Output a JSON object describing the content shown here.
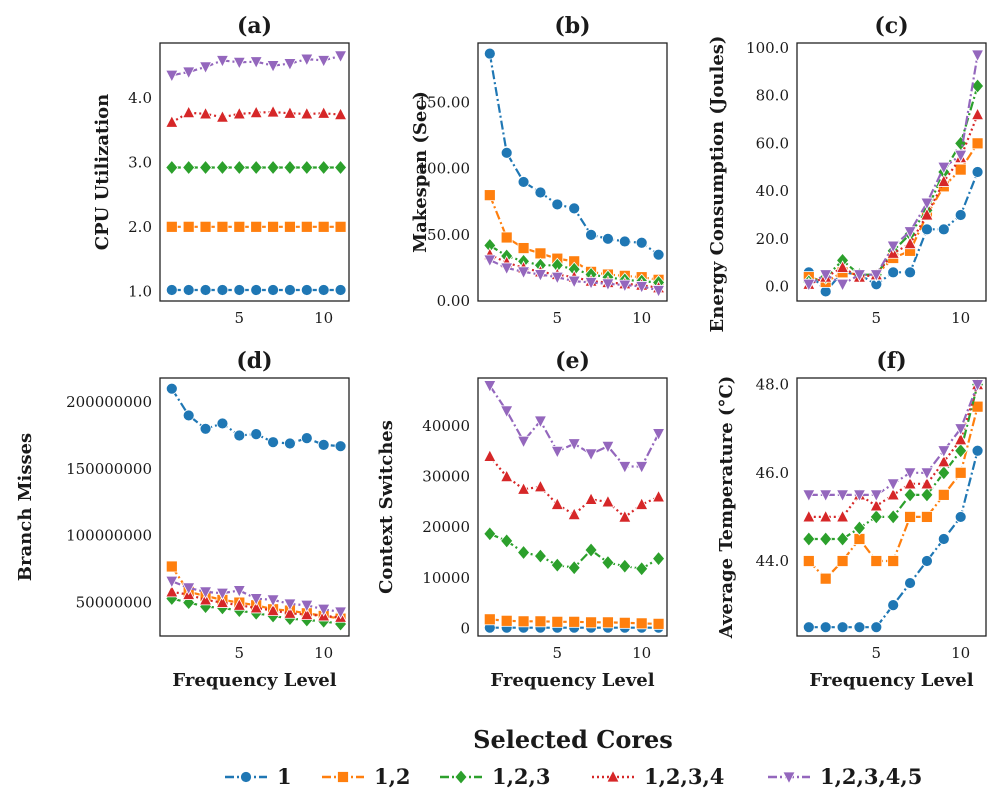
{
  "chart_data": [
    {
      "id": "a",
      "type": "line",
      "title": "(a)",
      "xlabel": "",
      "ylabel": "CPU Utilization",
      "xlim": [
        0.3,
        11.5
      ],
      "ylim": [
        0.85,
        4.85
      ],
      "xticks": [
        5,
        10
      ],
      "xticklabels": [
        "5",
        "10"
      ],
      "yticks": [
        1,
        2,
        3,
        4
      ],
      "yticklabels": [
        "1.0",
        "2.0",
        "3.0",
        "4.0"
      ],
      "x": [
        1,
        2,
        3,
        4,
        5,
        6,
        7,
        8,
        9,
        10,
        11
      ],
      "series": [
        {
          "name": "1",
          "values": [
            1.02,
            1.02,
            1.02,
            1.02,
            1.02,
            1.02,
            1.02,
            1.02,
            1.02,
            1.02,
            1.02
          ]
        },
        {
          "name": "1,2",
          "values": [
            2.0,
            2.0,
            2.0,
            2.0,
            2.0,
            2.0,
            2.0,
            2.0,
            2.0,
            2.0,
            2.0
          ]
        },
        {
          "name": "1,2,3",
          "values": [
            2.92,
            2.92,
            2.92,
            2.92,
            2.92,
            2.92,
            2.92,
            2.92,
            2.92,
            2.92,
            2.92
          ]
        },
        {
          "name": "1,2,3,4",
          "values": [
            3.62,
            3.77,
            3.75,
            3.7,
            3.75,
            3.77,
            3.78,
            3.76,
            3.75,
            3.76,
            3.74
          ]
        },
        {
          "name": "1,2,3,4,5",
          "values": [
            4.35,
            4.4,
            4.48,
            4.58,
            4.55,
            4.56,
            4.5,
            4.53,
            4.6,
            4.58,
            4.65
          ]
        }
      ]
    },
    {
      "id": "b",
      "type": "line",
      "title": "(b)",
      "xlabel": "",
      "ylabel": "Makespan (Sec)",
      "xlim": [
        0.3,
        11.5
      ],
      "ylim": [
        0,
        195
      ],
      "xticks": [
        5,
        10
      ],
      "xticklabels": [
        "5",
        "10"
      ],
      "yticks": [
        0,
        50,
        100,
        150
      ],
      "yticklabels": [
        "0.00",
        "50.00",
        "100.00",
        "150.00"
      ],
      "x": [
        1,
        2,
        3,
        4,
        5,
        6,
        7,
        8,
        9,
        10,
        11
      ],
      "series": [
        {
          "name": "1",
          "values": [
            187,
            112,
            90,
            82,
            73,
            70,
            50,
            47,
            45,
            44,
            35
          ]
        },
        {
          "name": "1,2",
          "values": [
            80,
            48,
            40,
            36,
            32,
            30,
            22,
            20,
            19,
            18,
            16
          ]
        },
        {
          "name": "1,2,3",
          "values": [
            42,
            34,
            30,
            27,
            27,
            24,
            20,
            18,
            16,
            15,
            14
          ]
        },
        {
          "name": "1,2,3,4",
          "values": [
            35,
            29,
            25,
            22,
            20,
            18,
            15,
            14,
            13,
            12,
            10
          ]
        },
        {
          "name": "1,2,3,4,5",
          "values": [
            31,
            25,
            22,
            20,
            18,
            15,
            14,
            13,
            12,
            11,
            8
          ]
        }
      ]
    },
    {
      "id": "c",
      "type": "line",
      "title": "(c)",
      "xlabel": "",
      "ylabel": "Energy Consumption (Joules)",
      "xlim": [
        0.3,
        11.5
      ],
      "ylim": [
        -6,
        102
      ],
      "xticks": [
        5,
        10
      ],
      "xticklabels": [
        "5",
        "10"
      ],
      "yticks": [
        0,
        20,
        40,
        60,
        80,
        100
      ],
      "yticklabels": [
        "0.0",
        "20.0",
        "40.0",
        "60.0",
        "80.0",
        "100.0"
      ],
      "x": [
        1,
        2,
        3,
        4,
        5,
        6,
        7,
        8,
        9,
        10,
        11
      ],
      "series": [
        {
          "name": "1",
          "values": [
            6,
            -2,
            6,
            5,
            1,
            6,
            6,
            24,
            24,
            30,
            48
          ]
        },
        {
          "name": "1,2",
          "values": [
            4,
            2,
            6,
            5,
            5,
            12,
            15,
            30,
            42,
            49,
            60
          ]
        },
        {
          "name": "1,2,3",
          "values": [
            2,
            4,
            11,
            5,
            5,
            15,
            22,
            32,
            48,
            60,
            84
          ]
        },
        {
          "name": "1,2,3,4",
          "values": [
            1,
            4,
            8,
            4,
            5,
            14,
            18,
            30,
            44,
            54,
            72
          ]
        },
        {
          "name": "1,2,3,4,5",
          "values": [
            1,
            5,
            1,
            5,
            5,
            17,
            23,
            35,
            50,
            55,
            97
          ]
        }
      ]
    },
    {
      "id": "d",
      "type": "line",
      "title": "(d)",
      "xlabel": "Frequency Level",
      "ylabel": "Branch Misses",
      "xlim": [
        0.3,
        11.5
      ],
      "ylim": [
        25000000,
        218000000
      ],
      "xticks": [
        5,
        10
      ],
      "xticklabels": [
        "5",
        "10"
      ],
      "yticks": [
        50000000,
        100000000,
        150000000,
        200000000
      ],
      "yticklabels": [
        "50000000",
        "100000000",
        "150000000",
        "200000000"
      ],
      "x": [
        1,
        2,
        3,
        4,
        5,
        6,
        7,
        8,
        9,
        10,
        11
      ],
      "series": [
        {
          "name": "1",
          "values": [
            210000000,
            190000000,
            180000000,
            184000000,
            175000000,
            176000000,
            170000000,
            169000000,
            173000000,
            168000000,
            167000000
          ]
        },
        {
          "name": "1,2",
          "values": [
            77000000,
            58000000,
            55000000,
            52000000,
            50000000,
            48000000,
            45000000,
            44000000,
            42000000,
            40000000,
            38000000
          ]
        },
        {
          "name": "1,2,3",
          "values": [
            53000000,
            50000000,
            47000000,
            46000000,
            44000000,
            42000000,
            40000000,
            38000000,
            37000000,
            36000000,
            34000000
          ]
        },
        {
          "name": "1,2,3,4",
          "values": [
            58000000,
            56000000,
            52000000,
            50000000,
            48000000,
            46000000,
            44000000,
            42000000,
            41000000,
            40000000,
            39000000
          ]
        },
        {
          "name": "1,2,3,4,5",
          "values": [
            66000000,
            61000000,
            58000000,
            57000000,
            59000000,
            53000000,
            52000000,
            49000000,
            48000000,
            45000000,
            43000000
          ]
        }
      ]
    },
    {
      "id": "e",
      "type": "line",
      "title": "(e)",
      "xlabel": "Frequency Level",
      "ylabel": "Context Switches",
      "xlim": [
        0.3,
        11.5
      ],
      "ylim": [
        -1500,
        49500
      ],
      "xticks": [
        5,
        10
      ],
      "xticklabels": [
        "5",
        "10"
      ],
      "yticks": [
        0,
        10000,
        20000,
        30000,
        40000
      ],
      "yticklabels": [
        "0",
        "10000",
        "20000",
        "30000",
        "40000"
      ],
      "x": [
        1,
        2,
        3,
        4,
        5,
        6,
        7,
        8,
        9,
        10,
        11
      ],
      "series": [
        {
          "name": "1",
          "values": [
            150,
            150,
            150,
            150,
            150,
            150,
            150,
            150,
            150,
            150,
            150
          ]
        },
        {
          "name": "1,2",
          "values": [
            1800,
            1500,
            1400,
            1400,
            1300,
            1300,
            1200,
            1200,
            1100,
            1000,
            900
          ]
        },
        {
          "name": "1,2,3",
          "values": [
            18700,
            17300,
            15000,
            14300,
            12500,
            12000,
            15500,
            13000,
            12300,
            11800,
            13800
          ]
        },
        {
          "name": "1,2,3,4",
          "values": [
            34000,
            30000,
            27500,
            28000,
            24500,
            22500,
            25500,
            25000,
            22000,
            24500,
            26000
          ]
        },
        {
          "name": "1,2,3,4,5",
          "values": [
            48000,
            43000,
            37000,
            41000,
            35000,
            36500,
            34500,
            36000,
            32000,
            32000,
            38500
          ]
        }
      ]
    },
    {
      "id": "f",
      "type": "line",
      "title": "(f)",
      "xlabel": "Frequency Level",
      "ylabel": "Average Temperature (°C)",
      "xlim": [
        0.3,
        11.5
      ],
      "ylim": [
        42.3,
        48.15
      ],
      "xticks": [
        5,
        10
      ],
      "xticklabels": [
        "5",
        "10"
      ],
      "yticks": [
        44,
        46,
        48
      ],
      "yticklabels": [
        "44.0",
        "46.0",
        "48.0"
      ],
      "x": [
        1,
        2,
        3,
        4,
        5,
        6,
        7,
        8,
        9,
        10,
        11
      ],
      "series": [
        {
          "name": "1",
          "values": [
            42.5,
            42.5,
            42.5,
            42.5,
            42.5,
            43.0,
            43.5,
            44.0,
            44.5,
            45.0,
            46.5
          ]
        },
        {
          "name": "1,2",
          "values": [
            44.0,
            43.6,
            44.0,
            44.5,
            44.0,
            44.0,
            45.0,
            45.0,
            45.5,
            46.0,
            47.5
          ]
        },
        {
          "name": "1,2,3",
          "values": [
            44.5,
            44.5,
            44.5,
            44.75,
            45.0,
            45.0,
            45.5,
            45.5,
            46.0,
            46.5,
            48.0
          ]
        },
        {
          "name": "1,2,3,4",
          "values": [
            45.0,
            45.0,
            45.0,
            45.5,
            45.25,
            45.5,
            45.75,
            45.75,
            46.25,
            46.75,
            48.0
          ]
        },
        {
          "name": "1,2,3,4,5",
          "values": [
            45.5,
            45.5,
            45.5,
            45.5,
            45.5,
            45.75,
            46.0,
            46.0,
            46.5,
            47.0,
            48.0
          ]
        }
      ]
    }
  ],
  "legend": {
    "title": "Selected Cores",
    "placement": "bottom-center",
    "entries": [
      {
        "label": "1",
        "color": "#1f77b4",
        "marker": "circle",
        "dash": "dashdot"
      },
      {
        "label": "1,2",
        "color": "#ff7f0e",
        "marker": "square",
        "dash": "dashdot"
      },
      {
        "label": "1,2,3",
        "color": "#2ca02c",
        "marker": "diamond",
        "dash": "dashdot"
      },
      {
        "label": "1,2,3,4",
        "color": "#d62728",
        "marker": "triangle-up",
        "dash": "dotted"
      },
      {
        "label": "1,2,3,4,5",
        "color": "#9467bd",
        "marker": "triangle-down",
        "dash": "dashdot"
      }
    ]
  }
}
